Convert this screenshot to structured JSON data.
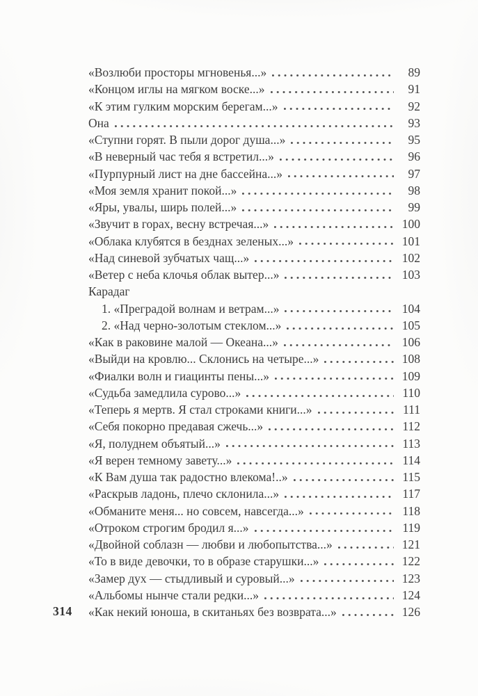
{
  "page": {
    "folio": "314"
  },
  "toc": {
    "entries": [
      {
        "type": "entry",
        "label": "«Возлюби просторы мгновенья...»",
        "page": "89"
      },
      {
        "type": "entry",
        "label": "«Концом иглы на мягком воске...»",
        "page": "91"
      },
      {
        "type": "entry",
        "label": "«К этим гулким морским берегам...»",
        "page": "92"
      },
      {
        "type": "entry",
        "label": "Она",
        "page": "93"
      },
      {
        "type": "entry",
        "label": "«Ступни горят. В пыли дорог душа...»",
        "page": "95"
      },
      {
        "type": "entry",
        "label": "«В неверный час тебя я встретил...»",
        "page": "96"
      },
      {
        "type": "entry",
        "label": "«Пурпурный лист на дне бассейна...»",
        "page": "97"
      },
      {
        "type": "entry",
        "label": "«Моя земля хранит покой...»",
        "page": "98"
      },
      {
        "type": "entry",
        "label": "«Яры, увалы, ширь полей...»",
        "page": "99"
      },
      {
        "type": "entry",
        "label": "«Звучит в горах, весну встречая...»",
        "page": "100"
      },
      {
        "type": "entry",
        "label": "«Облака клубятся в безднах зеленых...»",
        "page": "101"
      },
      {
        "type": "entry",
        "label": "«Над синевой зубчатых чащ...»",
        "page": "102"
      },
      {
        "type": "entry",
        "label": "«Ветер с неба клочья облак вытер...»",
        "page": "103"
      },
      {
        "type": "heading",
        "label": "Карадаг"
      },
      {
        "type": "sub",
        "label": "1. «Преградой волнам и ветрам...»",
        "page": "104"
      },
      {
        "type": "sub",
        "label": "2. «Над черно-золотым стеклом...»",
        "page": "105"
      },
      {
        "type": "entry",
        "label": "«Как в раковине малой — Океана...»",
        "page": "106"
      },
      {
        "type": "entry",
        "label": "«Выйди на кровлю... Склонись на четыре...»",
        "page": "108"
      },
      {
        "type": "entry",
        "label": "«Фиалки волн и гиацинты пены...»",
        "page": "109"
      },
      {
        "type": "entry",
        "label": "«Судьба замедлила сурово...»",
        "page": "110"
      },
      {
        "type": "entry",
        "label": "«Теперь я мертв. Я стал строками книги...»",
        "page": "111"
      },
      {
        "type": "entry",
        "label": "«Себя покорно предавая сжечь...»",
        "page": "112"
      },
      {
        "type": "entry",
        "label": "«Я, полуднем объятый...»",
        "page": "113"
      },
      {
        "type": "entry",
        "label": "«Я верен темному завету...»",
        "page": "114"
      },
      {
        "type": "entry",
        "label": "«К Вам душа так радостно влекома!..»",
        "page": "115"
      },
      {
        "type": "entry",
        "label": "«Раскрыв ладонь, плечо склонила...»",
        "page": "117"
      },
      {
        "type": "entry",
        "label": "«Обманите меня... но совсем, навсегда...»",
        "page": "118"
      },
      {
        "type": "entry",
        "label": "«Отроком строгим бродил я...»",
        "page": "119"
      },
      {
        "type": "entry",
        "label": "«Двойной соблазн — любви и любопытства...»",
        "page": "121"
      },
      {
        "type": "entry",
        "label": "«То в виде девочки, то в образе старушки...»",
        "page": "122"
      },
      {
        "type": "entry",
        "label": "«Замер дух — стыдливый и суровый...»",
        "page": "123"
      },
      {
        "type": "entry",
        "label": "«Альбомы нынче стали редки...»",
        "page": "124"
      },
      {
        "type": "entry",
        "label": "«Как некий юноша, в скитаньях без возврата...»",
        "page": "126"
      }
    ]
  }
}
